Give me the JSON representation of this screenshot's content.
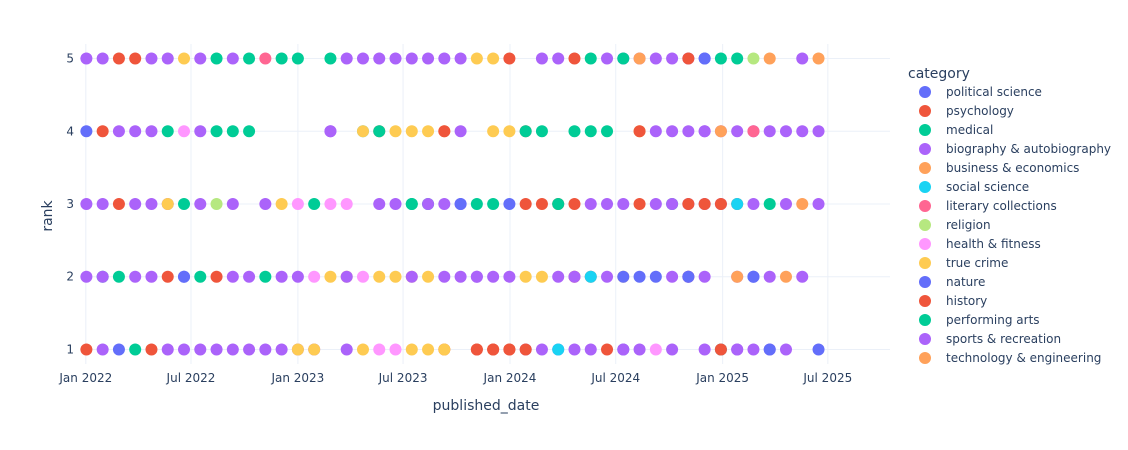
{
  "chart_data": {
    "type": "scatter",
    "xlabel": "published_date",
    "ylabel": "rank",
    "x_ticks": [
      "2022-01-01",
      "2022-07-01",
      "2023-01-01",
      "2023-07-01",
      "2024-01-01",
      "2024-07-01",
      "2025-01-01",
      "2025-07-01"
    ],
    "x_tick_labels": [
      "Jan 2022",
      "Jul 2022",
      "Jan 2023",
      "Jul 2023",
      "Jan 2024",
      "Jul 2024",
      "Jan 2025",
      "Jul 2025"
    ],
    "y_ticks": [
      1,
      2,
      3,
      4,
      5
    ],
    "ylim": [
      0.8,
      5.2
    ],
    "grid": true,
    "legend": {
      "title": "category",
      "placement": "right"
    },
    "dates": [
      "2022-01-02",
      "2022-01-30",
      "2022-02-27",
      "2022-03-27",
      "2022-04-24",
      "2022-05-22",
      "2022-06-19",
      "2022-07-17",
      "2022-08-14",
      "2022-09-11",
      "2022-10-09",
      "2022-11-06",
      "2022-12-04",
      "2023-01-01",
      "2023-01-29",
      "2023-02-26",
      "2023-03-26",
      "2023-04-23",
      "2023-05-21",
      "2023-06-18",
      "2023-07-16",
      "2023-08-13",
      "2023-09-10",
      "2023-10-08",
      "2023-11-05",
      "2023-12-03",
      "2023-12-31",
      "2024-01-28",
      "2024-02-25",
      "2024-03-24",
      "2024-04-21",
      "2024-05-19",
      "2024-06-16",
      "2024-07-14",
      "2024-08-11",
      "2024-09-08",
      "2024-10-06",
      "2024-11-03",
      "2024-12-01",
      "2024-12-29",
      "2025-01-26",
      "2025-02-23",
      "2025-03-23",
      "2025-04-20",
      "2025-05-18",
      "2025-06-15"
    ],
    "series": [
      {
        "name": "political science",
        "color": "#636efa",
        "points": [
          [
            0,
            4
          ],
          [
            2,
            1
          ],
          [
            6,
            2
          ],
          [
            26,
            3
          ],
          [
            33,
            1
          ],
          [
            34,
            2
          ],
          [
            38,
            5
          ],
          [
            41,
            2
          ],
          [
            45,
            1
          ]
        ]
      },
      {
        "name": "psychology",
        "color": "#EF553B",
        "points": [
          [
            0,
            1
          ],
          [
            1,
            4
          ],
          [
            2,
            3
          ],
          [
            2,
            5
          ],
          [
            3,
            5
          ],
          [
            4,
            1
          ],
          [
            5,
            2
          ],
          [
            8,
            2
          ],
          [
            18,
            4
          ],
          [
            22,
            1
          ],
          [
            24,
            1
          ],
          [
            25,
            1
          ],
          [
            26,
            5
          ],
          [
            26,
            1
          ],
          [
            27,
            3
          ],
          [
            27,
            4
          ],
          [
            28,
            3
          ],
          [
            29,
            3
          ],
          [
            30,
            3
          ],
          [
            30,
            5
          ],
          [
            31,
            2
          ],
          [
            34,
            3
          ],
          [
            37,
            2
          ],
          [
            39,
            1
          ],
          [
            40,
            3
          ]
        ]
      },
      {
        "name": "medical",
        "color": "#00cc96",
        "points": [
          [
            1,
            2
          ],
          [
            2,
            2
          ],
          [
            3,
            1
          ],
          [
            5,
            4
          ],
          [
            6,
            3
          ],
          [
            7,
            2
          ],
          [
            8,
            5
          ],
          [
            8,
            4
          ],
          [
            9,
            4
          ],
          [
            10,
            4
          ],
          [
            10,
            5
          ],
          [
            11,
            2
          ],
          [
            12,
            5
          ],
          [
            13,
            5
          ],
          [
            14,
            3
          ],
          [
            15,
            5
          ],
          [
            18,
            4
          ],
          [
            20,
            3
          ],
          [
            21,
            3
          ],
          [
            24,
            3
          ],
          [
            27,
            4
          ],
          [
            28,
            4
          ],
          [
            29,
            3
          ],
          [
            30,
            4
          ],
          [
            31,
            5
          ],
          [
            36,
            3
          ],
          [
            40,
            5
          ],
          [
            42,
            3
          ]
        ]
      },
      {
        "name": "biography & autobiography",
        "color": "#ab63fa",
        "points": [
          [
            0,
            5
          ],
          [
            0,
            3
          ],
          [
            0,
            2
          ],
          [
            1,
            5
          ],
          [
            1,
            3
          ],
          [
            1,
            2
          ],
          [
            1,
            1
          ],
          [
            2,
            4
          ],
          [
            3,
            4
          ],
          [
            3,
            3
          ],
          [
            3,
            2
          ],
          [
            4,
            5
          ],
          [
            4,
            4
          ],
          [
            4,
            3
          ],
          [
            4,
            2
          ],
          [
            5,
            5
          ],
          [
            5,
            3
          ],
          [
            5,
            1
          ],
          [
            6,
            1
          ],
          [
            7,
            5
          ],
          [
            7,
            4
          ],
          [
            7,
            3
          ],
          [
            7,
            1
          ],
          [
            8,
            1
          ],
          [
            9,
            5
          ],
          [
            9,
            3
          ],
          [
            9,
            2
          ],
          [
            9,
            1
          ],
          [
            10,
            2
          ],
          [
            10,
            1
          ],
          [
            11,
            3
          ],
          [
            11,
            1
          ],
          [
            12,
            2
          ],
          [
            12,
            1
          ],
          [
            13,
            2
          ],
          [
            13,
            1
          ],
          [
            14,
            1
          ],
          [
            15,
            4
          ],
          [
            16,
            5
          ],
          [
            17,
            5
          ],
          [
            18,
            5
          ],
          [
            19,
            5
          ],
          [
            20,
            5
          ],
          [
            21,
            5
          ],
          [
            22,
            5
          ],
          [
            23,
            5
          ],
          [
            23,
            4
          ],
          [
            23,
            3
          ],
          [
            23,
            2
          ],
          [
            24,
            2
          ],
          [
            25,
            2
          ],
          [
            26,
            2
          ],
          [
            27,
            1
          ],
          [
            28,
            1
          ],
          [
            29,
            2
          ],
          [
            29,
            1
          ],
          [
            32,
            5
          ],
          [
            33,
            5
          ],
          [
            34,
            5
          ],
          [
            35,
            5
          ],
          [
            35,
            4
          ],
          [
            35,
            3
          ],
          [
            36,
            5
          ],
          [
            36,
            4
          ],
          [
            36,
            2
          ],
          [
            36,
            1
          ],
          [
            37,
            5
          ],
          [
            37,
            4
          ],
          [
            37,
            3
          ],
          [
            37,
            2
          ],
          [
            38,
            4
          ],
          [
            38,
            3
          ],
          [
            38,
            2
          ],
          [
            38,
            1
          ],
          [
            39,
            4
          ],
          [
            39,
            3
          ],
          [
            40,
            4
          ],
          [
            40,
            2
          ],
          [
            40,
            1
          ],
          [
            41,
            4
          ],
          [
            41,
            1
          ],
          [
            42,
            1
          ],
          [
            43,
            4
          ]
        ]
      },
      {
        "name": "business & economics",
        "color": "#FFA15A",
        "points": [
          [
            22,
            4
          ],
          [
            34,
            5
          ],
          [
            39,
            4
          ],
          [
            40,
            2
          ],
          [
            42,
            5
          ],
          [
            43,
            2
          ]
        ]
      },
      {
        "name": "social science",
        "color": "#19d3f3",
        "points": [
          [
            17,
            4
          ],
          [
            29,
            1
          ],
          [
            31,
            2
          ],
          [
            39,
            1
          ],
          [
            40,
            3
          ]
        ]
      },
      {
        "name": "literary collections",
        "color": "#FF6692",
        "points": [
          [
            11,
            5
          ],
          [
            41,
            4
          ]
        ]
      },
      {
        "name": "religion",
        "color": "#B6E880",
        "points": [
          [
            8,
            3
          ],
          [
            41,
            5
          ]
        ]
      },
      {
        "name": "health & fitness",
        "color": "#FF97FF",
        "points": [
          [
            6,
            4
          ],
          [
            13,
            3
          ],
          [
            14,
            2
          ],
          [
            15,
            3
          ],
          [
            16,
            3
          ],
          [
            17,
            2
          ],
          [
            18,
            1
          ],
          [
            19,
            1
          ],
          [
            35,
            1
          ]
        ]
      },
      {
        "name": "true crime",
        "color": "#FECB52",
        "points": [
          [
            5,
            3
          ],
          [
            6,
            5
          ],
          [
            12,
            3
          ],
          [
            13,
            1
          ],
          [
            14,
            1
          ],
          [
            15,
            2
          ],
          [
            16,
            2
          ],
          [
            17,
            1
          ],
          [
            17,
            4
          ],
          [
            18,
            2
          ],
          [
            19,
            2
          ],
          [
            19,
            4
          ],
          [
            20,
            1
          ],
          [
            20,
            2
          ],
          [
            20,
            4
          ],
          [
            21,
            1
          ],
          [
            21,
            2
          ],
          [
            21,
            4
          ],
          [
            22,
            1
          ],
          [
            24,
            5
          ],
          [
            25,
            5
          ],
          [
            25,
            4
          ],
          [
            26,
            4
          ],
          [
            27,
            2
          ],
          [
            28,
            2
          ],
          [
            33,
            2
          ],
          [
            34,
            4
          ]
        ]
      },
      {
        "name": "nature",
        "color": "#636efa",
        "points": [
          [
            6,
            2
          ],
          [
            23,
            3
          ],
          [
            33,
            2
          ],
          [
            35,
            2
          ],
          [
            37,
            2
          ],
          [
            38,
            5
          ],
          [
            41,
            2
          ],
          [
            42,
            1
          ]
        ]
      },
      {
        "name": "history",
        "color": "#EF553B",
        "points": [
          [
            22,
            4
          ],
          [
            24,
            1
          ],
          [
            25,
            1
          ],
          [
            26,
            1
          ],
          [
            27,
            1
          ],
          [
            30,
            2
          ],
          [
            32,
            1
          ],
          [
            34,
            4
          ],
          [
            37,
            5
          ],
          [
            37,
            3
          ],
          [
            38,
            3
          ],
          [
            39,
            1
          ],
          [
            39,
            3
          ]
        ]
      },
      {
        "name": "performing arts",
        "color": "#00cc96",
        "points": [
          [
            20,
            3
          ],
          [
            25,
            3
          ],
          [
            31,
            4
          ],
          [
            32,
            4
          ],
          [
            33,
            5
          ],
          [
            39,
            5
          ]
        ]
      },
      {
        "name": "sports & recreation",
        "color": "#ab63fa",
        "points": [
          [
            15,
            4
          ],
          [
            16,
            2
          ],
          [
            16,
            1
          ],
          [
            18,
            3
          ],
          [
            19,
            3
          ],
          [
            20,
            2
          ],
          [
            21,
            3
          ],
          [
            22,
            3
          ],
          [
            22,
            2
          ],
          [
            24,
            2
          ],
          [
            28,
            5
          ],
          [
            29,
            5
          ],
          [
            30,
            2
          ],
          [
            30,
            1
          ],
          [
            31,
            3
          ],
          [
            31,
            1
          ],
          [
            32,
            3
          ],
          [
            32,
            2
          ],
          [
            33,
            3
          ],
          [
            33,
            1
          ],
          [
            34,
            1
          ],
          [
            36,
            3
          ],
          [
            38,
            4
          ],
          [
            40,
            1
          ],
          [
            41,
            3
          ],
          [
            42,
            2
          ],
          [
            42,
            4
          ],
          [
            43,
            1
          ],
          [
            43,
            3
          ],
          [
            44,
            5
          ],
          [
            44,
            2
          ],
          [
            44,
            4
          ],
          [
            45,
            4
          ],
          [
            45,
            3
          ]
        ]
      },
      {
        "name": "technology & engineering",
        "color": "#FFA15A",
        "points": [
          [
            44,
            3
          ],
          [
            45,
            5
          ]
        ]
      }
    ]
  }
}
